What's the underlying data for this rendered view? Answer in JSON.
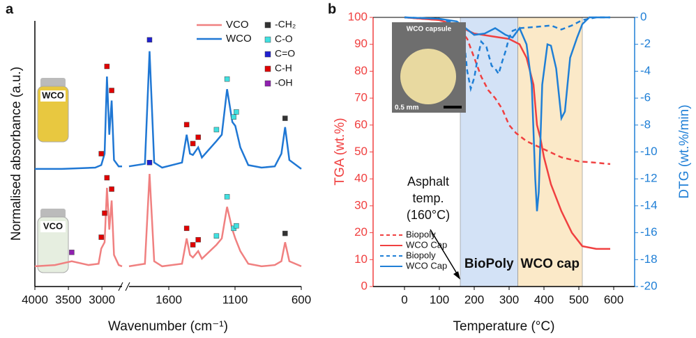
{
  "chart_data": [
    {
      "type": "line",
      "panel": "a",
      "x_label": "Wavenumber (cm⁻¹)",
      "y_label": "Normalised absorbance (a.u.)",
      "xlim_segments": [
        [
          4000,
          2700
        ],
        [
          1900,
          600
        ]
      ],
      "xticks": [
        4000,
        3500,
        3000,
        1600,
        1100,
        600
      ],
      "ylim": [
        0,
        2.1
      ],
      "insets": [
        "WCO",
        "VCO"
      ],
      "series": [
        {
          "name": "VCO",
          "color": "#f08080",
          "x": [
            4000,
            3700,
            3450,
            3200,
            3050,
            3010,
            2960,
            2925,
            2890,
            2855,
            2820,
            2750,
            2700,
            1900,
            1780,
            1745,
            1710,
            1650,
            1500,
            1465,
            1440,
            1418,
            1378,
            1350,
            1240,
            1200,
            1160,
            1120,
            1098,
            1060,
            1000,
            900,
            800,
            750,
            722,
            690,
            600
          ],
          "values": [
            0.16,
            0.17,
            0.2,
            0.17,
            0.18,
            0.3,
            0.35,
            0.78,
            0.45,
            0.68,
            0.25,
            0.17,
            0.16,
            0.16,
            0.18,
            0.89,
            0.2,
            0.16,
            0.18,
            0.38,
            0.25,
            0.23,
            0.28,
            0.22,
            0.33,
            0.38,
            0.63,
            0.45,
            0.38,
            0.28,
            0.18,
            0.16,
            0.17,
            0.2,
            0.35,
            0.2,
            0.16
          ]
        },
        {
          "name": "WCO",
          "color": "#1f77d4",
          "x": [
            4000,
            3600,
            3100,
            3010,
            2960,
            2925,
            2890,
            2855,
            2820,
            2750,
            2700,
            1900,
            1780,
            1745,
            1710,
            1650,
            1500,
            1465,
            1440,
            1418,
            1378,
            1350,
            1240,
            1200,
            1160,
            1120,
            1098,
            1060,
            1000,
            900,
            800,
            750,
            722,
            690,
            600
          ],
          "values": [
            0.93,
            0.93,
            0.94,
            0.96,
            1.05,
            1.66,
            1.2,
            1.47,
            1.0,
            0.95,
            0.95,
            0.95,
            0.97,
            1.86,
            0.98,
            0.94,
            0.98,
            1.2,
            1.05,
            1.04,
            1.1,
            1.02,
            1.15,
            1.2,
            1.56,
            1.3,
            1.27,
            1.1,
            0.96,
            0.94,
            0.95,
            1.05,
            1.26,
            1.0,
            0.93
          ]
        }
      ],
      "markers": [
        {
          "name": "-CH₂",
          "color": "#333333",
          "x": [
            722,
            722
          ],
          "values": [
            1.33,
            0.42
          ]
        },
        {
          "name": "C-O",
          "color": "#40e0e0",
          "x": [
            1240,
            1160,
            1110,
            1090,
            1240,
            1160,
            1110,
            1090
          ],
          "values": [
            1.24,
            1.64,
            1.34,
            1.38,
            0.4,
            0.71,
            0.46,
            0.48
          ]
        },
        {
          "name": "C=O",
          "color": "#2020d0",
          "x": [
            1745,
            1745
          ],
          "values": [
            1.95,
            0.98
          ]
        },
        {
          "name": "C-H",
          "color": "#e00000",
          "x": [
            3010,
            2925,
            2855,
            1465,
            1418,
            1378,
            3010,
            2960,
            2925,
            2855,
            1465,
            1418,
            1378
          ],
          "values": [
            1.05,
            1.74,
            1.55,
            1.28,
            1.13,
            1.18,
            0.39,
            0.58,
            0.86,
            0.77,
            0.46,
            0.33,
            0.37
          ]
        },
        {
          "name": "-OH",
          "color": "#9020b0",
          "x": [
            3450
          ],
          "values": [
            0.27
          ]
        }
      ]
    },
    {
      "type": "line",
      "panel": "b",
      "x_label": "Temperature (°C)",
      "y_label": "TGA (wt.%)",
      "y2_label": "DTG (wt.%/min)",
      "xlim": [
        -90,
        660
      ],
      "xticks": [
        0,
        100,
        200,
        300,
        400,
        500,
        600
      ],
      "ylim": [
        0,
        100
      ],
      "yticks": [
        0,
        10,
        20,
        30,
        40,
        50,
        60,
        70,
        80,
        90,
        100
      ],
      "y2lim": [
        -20,
        0
      ],
      "y2ticks": [
        0,
        -2,
        -4,
        -6,
        -8,
        -10,
        -12,
        -14,
        -16,
        -18,
        -20
      ],
      "y_color": "#f04040",
      "y2_color": "#1f7fd6",
      "regions": [
        {
          "from": 160,
          "to": 325,
          "color": "#d3e2f6",
          "label": "BioPoly"
        },
        {
          "from": 325,
          "to": 510,
          "color": "#fbe9c8",
          "label": "WCO cap"
        }
      ],
      "annotation": {
        "lines": [
          "Asphalt",
          "temp.",
          "(160°C)"
        ],
        "x": 160
      },
      "inset": {
        "title": "WCO capsule",
        "scale": "0.5 mm"
      },
      "series": [
        {
          "name": "Biopoly",
          "color": "#f04040",
          "dash": true,
          "x": [
            0,
            100,
            150,
            180,
            200,
            220,
            240,
            260,
            280,
            300,
            320,
            350,
            400,
            450,
            500,
            550,
            590
          ],
          "values": [
            100,
            99,
            97,
            92,
            85,
            78,
            73,
            70,
            66,
            60,
            57,
            54,
            51,
            48,
            46.5,
            46,
            45.5
          ]
        },
        {
          "name": "WCO Cap",
          "color": "#f04040",
          "dash": false,
          "x": [
            0,
            100,
            150,
            200,
            250,
            300,
            330,
            350,
            370,
            380,
            390,
            400,
            420,
            450,
            480,
            510,
            550,
            590
          ],
          "values": [
            100,
            99,
            97,
            94,
            93,
            92,
            90,
            85,
            75,
            60,
            55,
            48,
            38,
            28,
            20,
            15,
            14,
            14
          ]
        },
        {
          "name": "Biopoly",
          "color": "#1f7fd6",
          "dash": true,
          "axis": "y2",
          "x": [
            0,
            100,
            150,
            170,
            180,
            190,
            200,
            210,
            220,
            235,
            250,
            260,
            270,
            280,
            290,
            300,
            310,
            330,
            380,
            420,
            450,
            480,
            510,
            550,
            590
          ],
          "values": [
            0,
            -0.1,
            -0.5,
            -1.5,
            -4,
            -5.3,
            -4.5,
            -3,
            -1.8,
            -2.2,
            -3.6,
            -3.8,
            -4.2,
            -3.3,
            -2.5,
            -1.5,
            -1,
            -0.8,
            -0.7,
            -0.6,
            -0.9,
            -0.6,
            -0.2,
            0,
            0
          ]
        },
        {
          "name": "WCO Cap",
          "color": "#1f7fd6",
          "dash": false,
          "axis": "y2",
          "x": [
            0,
            100,
            150,
            200,
            230,
            260,
            290,
            310,
            330,
            350,
            365,
            375,
            380,
            385,
            395,
            410,
            420,
            435,
            450,
            460,
            475,
            495,
            510,
            530,
            590
          ],
          "values": [
            0,
            -0.1,
            -0.3,
            -1.3,
            -1.2,
            -0.8,
            -1.3,
            -1.5,
            -0.8,
            -2,
            -5,
            -12,
            -14.4,
            -13,
            -5,
            -2,
            -2.1,
            -3.8,
            -7.5,
            -7,
            -3,
            -1.5,
            -0.5,
            0,
            0
          ]
        }
      ]
    }
  ]
}
